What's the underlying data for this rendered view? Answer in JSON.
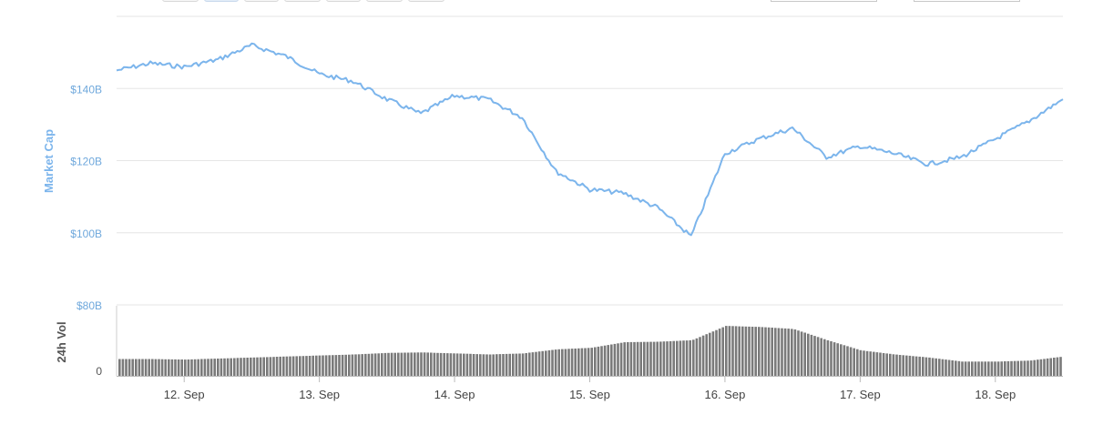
{
  "chart_data": {
    "type": "line",
    "x_start": "2018-09-11T12:00",
    "x_end": "2018-09-18T12:00",
    "xtick_labels": [
      "12. Sep",
      "13. Sep",
      "14. Sep",
      "15. Sep",
      "16. Sep",
      "17. Sep",
      "18. Sep"
    ],
    "market_cap": {
      "ylabel": "Market Cap",
      "unit": "USD billions",
      "ylim": [
        80,
        160
      ],
      "ytick_labels": [
        "$80B",
        "$100B",
        "$120B",
        "$140B"
      ],
      "color": "#7cb5ec",
      "x": [
        "2018-09-11T12:00",
        "2018-09-11T18:00",
        "2018-09-12T00:00",
        "2018-09-12T06:00",
        "2018-09-12T12:00",
        "2018-09-12T18:00",
        "2018-09-13T00:00",
        "2018-09-13T06:00",
        "2018-09-13T12:00",
        "2018-09-13T18:00",
        "2018-09-14T00:00",
        "2018-09-14T06:00",
        "2018-09-14T12:00",
        "2018-09-14T18:00",
        "2018-09-15T00:00",
        "2018-09-15T06:00",
        "2018-09-15T12:00",
        "2018-09-15T18:00",
        "2018-09-16T00:00",
        "2018-09-16T06:00",
        "2018-09-16T12:00",
        "2018-09-16T18:00",
        "2018-09-17T00:00",
        "2018-09-17T06:00",
        "2018-09-17T12:00",
        "2018-09-17T18:00",
        "2018-09-18T00:00",
        "2018-09-18T06:00",
        "2018-09-18T12:00"
      ],
      "values": [
        145,
        147,
        146,
        148,
        152,
        149,
        144,
        142,
        137,
        133,
        138,
        137,
        132,
        117,
        112,
        111,
        107,
        99,
        122,
        126,
        129,
        121,
        124,
        122,
        119,
        121,
        126,
        131,
        137
      ]
    },
    "volume": {
      "ylabel": "24h Vol",
      "ytick_labels": [
        "0"
      ],
      "color": "#7a7a7a",
      "x": [
        "2018-09-11T12:00",
        "2018-09-11T18:00",
        "2018-09-12T00:00",
        "2018-09-12T06:00",
        "2018-09-12T12:00",
        "2018-09-12T18:00",
        "2018-09-13T00:00",
        "2018-09-13T06:00",
        "2018-09-13T12:00",
        "2018-09-13T18:00",
        "2018-09-14T00:00",
        "2018-09-14T06:00",
        "2018-09-14T12:00",
        "2018-09-14T18:00",
        "2018-09-15T00:00",
        "2018-09-15T06:00",
        "2018-09-15T12:00",
        "2018-09-15T18:00",
        "2018-09-16T00:00",
        "2018-09-16T06:00",
        "2018-09-16T12:00",
        "2018-09-16T18:00",
        "2018-09-17T00:00",
        "2018-09-17T06:00",
        "2018-09-17T12:00",
        "2018-09-17T18:00",
        "2018-09-18T00:00",
        "2018-09-18T06:00",
        "2018-09-18T12:00"
      ],
      "relative_values": [
        0.33,
        0.33,
        0.32,
        0.34,
        0.36,
        0.38,
        0.4,
        0.42,
        0.45,
        0.46,
        0.44,
        0.42,
        0.44,
        0.52,
        0.55,
        0.66,
        0.67,
        0.7,
        0.98,
        0.96,
        0.92,
        0.7,
        0.5,
        0.42,
        0.36,
        0.28,
        0.28,
        0.3,
        0.38
      ]
    },
    "grid": true,
    "legend": "none"
  }
}
